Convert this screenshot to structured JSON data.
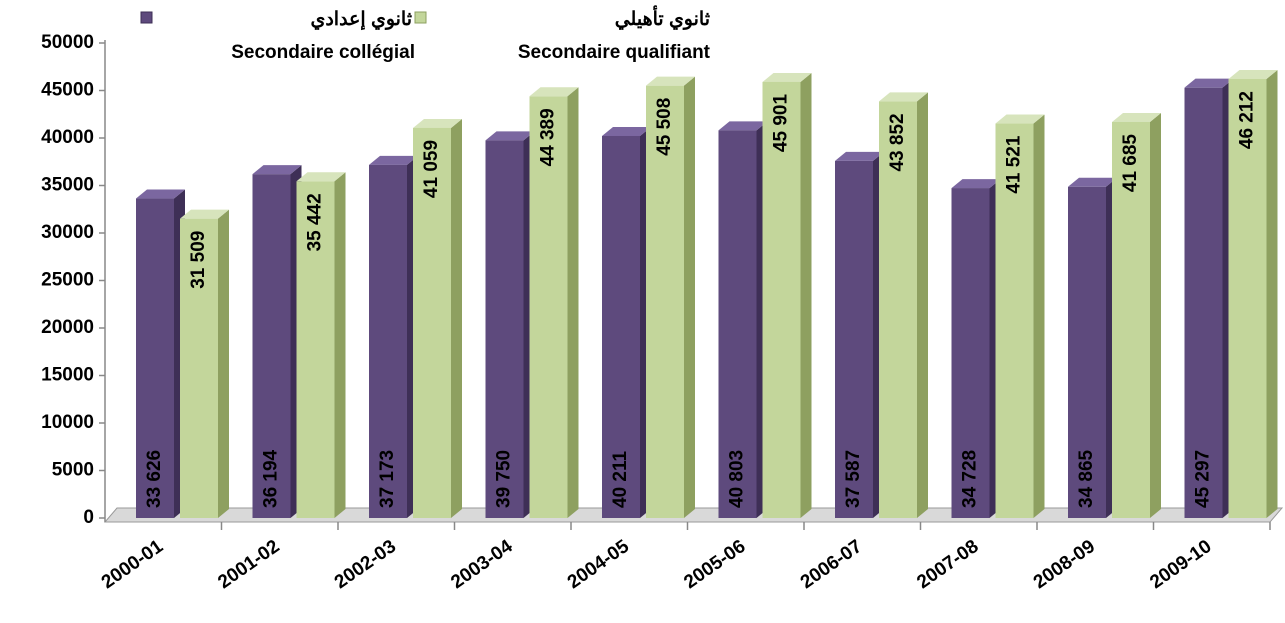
{
  "chart_data": {
    "type": "bar3d",
    "categories": [
      "2000-01",
      "2001-02",
      "2002-03",
      "2003-04",
      "2004-05",
      "2005-06",
      "2006-07",
      "2007-08",
      "2008-09",
      "2009-10"
    ],
    "series": [
      {
        "name": "Secondaire collégial",
        "name_ar": "ثانوي إعدادي",
        "color": "#5e4a7d",
        "values": [
          33626,
          36194,
          37173,
          39750,
          40211,
          40803,
          37587,
          34728,
          34865,
          45297
        ],
        "value_labels": [
          "33 626",
          "36 194",
          "37 173",
          "39 750",
          "40 211",
          "40 803",
          "37 587",
          "34 728",
          "34 865",
          "45 297"
        ]
      },
      {
        "name": "Secondaire qualifiant",
        "name_ar": "ثانوي تأهيلي",
        "color": "#c3d69b",
        "values": [
          31509,
          35442,
          41059,
          44389,
          45508,
          45901,
          43852,
          41521,
          41685,
          46212
        ],
        "value_labels": [
          "31 509",
          "35 442",
          "41 059",
          "44 389",
          "45 508",
          "45 901",
          "43 852",
          "41 521",
          "41 685",
          "46 212"
        ]
      }
    ],
    "ylim": [
      0,
      50000
    ],
    "yticks": [
      0,
      5000,
      10000,
      15000,
      20000,
      25000,
      30000,
      35000,
      40000,
      45000,
      50000
    ]
  }
}
